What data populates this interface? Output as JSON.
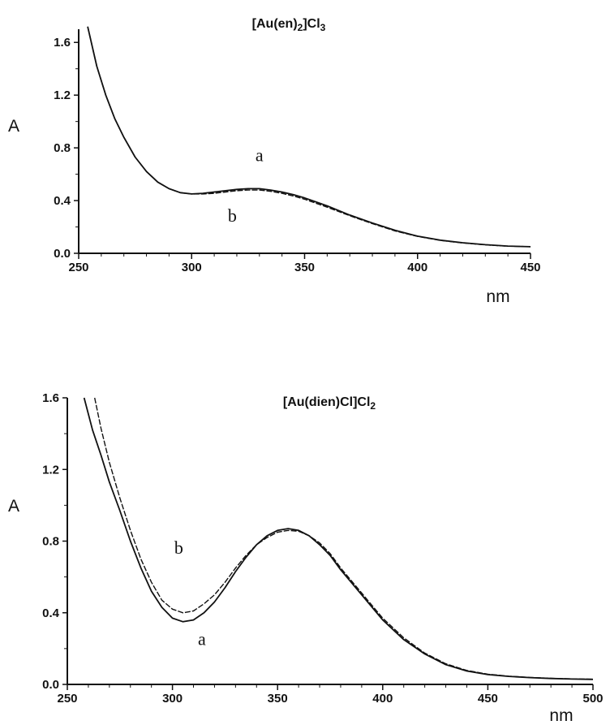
{
  "chart_data": [
    {
      "type": "line",
      "title_main": "[Au(en)",
      "title_sub": "2",
      "title_rest": "]Cl",
      "title_sub2": "3",
      "xlabel": "nm",
      "ylabel": "A",
      "xlim": [
        250,
        450
      ],
      "ylim": [
        0,
        1.7
      ],
      "xticks": [
        "250",
        "300",
        "350",
        "400",
        "450"
      ],
      "yticks": [
        "0.0",
        "0.4",
        "0.8",
        "1.2",
        "1.6"
      ],
      "grid": false,
      "series": [
        {
          "name": "a",
          "style": "solid",
          "x": [
            254,
            258,
            262,
            266,
            270,
            275,
            280,
            285,
            290,
            295,
            300,
            305,
            310,
            315,
            320,
            325,
            330,
            335,
            340,
            345,
            350,
            360,
            370,
            380,
            390,
            400,
            410,
            420,
            430,
            440,
            450
          ],
          "y": [
            1.72,
            1.42,
            1.2,
            1.02,
            0.88,
            0.73,
            0.62,
            0.54,
            0.49,
            0.46,
            0.45,
            0.455,
            0.465,
            0.475,
            0.485,
            0.49,
            0.49,
            0.48,
            0.465,
            0.445,
            0.42,
            0.36,
            0.29,
            0.23,
            0.175,
            0.13,
            0.1,
            0.08,
            0.065,
            0.055,
            0.05
          ]
        },
        {
          "name": "b",
          "style": "dashed",
          "x": [
            254,
            258,
            262,
            266,
            270,
            275,
            280,
            285,
            290,
            295,
            300,
            305,
            310,
            315,
            320,
            325,
            330,
            335,
            340,
            345,
            350,
            360,
            370,
            380,
            390,
            400,
            410,
            420,
            430,
            440,
            450
          ],
          "y": [
            1.72,
            1.42,
            1.2,
            1.02,
            0.88,
            0.73,
            0.62,
            0.54,
            0.49,
            0.46,
            0.45,
            0.45,
            0.455,
            0.465,
            0.475,
            0.48,
            0.48,
            0.47,
            0.455,
            0.435,
            0.41,
            0.35,
            0.285,
            0.225,
            0.17,
            0.128,
            0.098,
            0.078,
            0.064,
            0.054,
            0.05
          ]
        }
      ],
      "annotations": [
        {
          "text": "a",
          "x": 330,
          "y": 0.7
        },
        {
          "text": "b",
          "x": 318,
          "y": 0.24
        }
      ]
    },
    {
      "type": "line",
      "title_main": "[Au(dien)Cl]Cl",
      "title_sub": "2",
      "title_rest": "",
      "title_sub2": "",
      "xlabel": "nm",
      "ylabel": "A",
      "xlim": [
        250,
        500
      ],
      "ylim": [
        0,
        1.6
      ],
      "xticks": [
        "250",
        "300",
        "350",
        "400",
        "450",
        "500"
      ],
      "yticks": [
        "0.0",
        "0.4",
        "0.8",
        "1.2",
        "1.6"
      ],
      "grid": false,
      "series": [
        {
          "name": "a",
          "style": "solid",
          "x": [
            258,
            262,
            266,
            270,
            275,
            280,
            285,
            290,
            295,
            300,
            305,
            310,
            315,
            320,
            325,
            330,
            335,
            340,
            345,
            350,
            355,
            360,
            365,
            370,
            375,
            380,
            390,
            400,
            410,
            420,
            430,
            440,
            450,
            460,
            470,
            480,
            490,
            500
          ],
          "y": [
            1.6,
            1.42,
            1.28,
            1.13,
            0.97,
            0.8,
            0.65,
            0.52,
            0.43,
            0.37,
            0.35,
            0.36,
            0.4,
            0.46,
            0.54,
            0.63,
            0.71,
            0.78,
            0.83,
            0.86,
            0.87,
            0.86,
            0.83,
            0.78,
            0.72,
            0.64,
            0.5,
            0.36,
            0.25,
            0.17,
            0.11,
            0.075,
            0.055,
            0.045,
            0.038,
            0.033,
            0.03,
            0.028
          ]
        },
        {
          "name": "b",
          "style": "dashed",
          "x": [
            263,
            266,
            270,
            275,
            280,
            285,
            290,
            295,
            300,
            305,
            310,
            315,
            320,
            325,
            330,
            335,
            340,
            345,
            350,
            355,
            360,
            365,
            370,
            375,
            380,
            390,
            400,
            410,
            420,
            430,
            440,
            450,
            460,
            470,
            480,
            490,
            500
          ],
          "y": [
            1.6,
            1.43,
            1.24,
            1.04,
            0.86,
            0.7,
            0.57,
            0.47,
            0.42,
            0.4,
            0.41,
            0.45,
            0.5,
            0.57,
            0.65,
            0.72,
            0.78,
            0.82,
            0.85,
            0.86,
            0.855,
            0.83,
            0.79,
            0.73,
            0.65,
            0.51,
            0.37,
            0.26,
            0.175,
            0.115,
            0.078,
            0.057,
            0.046,
            0.039,
            0.034,
            0.031,
            0.029
          ]
        }
      ],
      "annotations": [
        {
          "text": "b",
          "x": 303,
          "y": 0.73
        },
        {
          "text": "a",
          "x": 314,
          "y": 0.22
        }
      ]
    }
  ]
}
